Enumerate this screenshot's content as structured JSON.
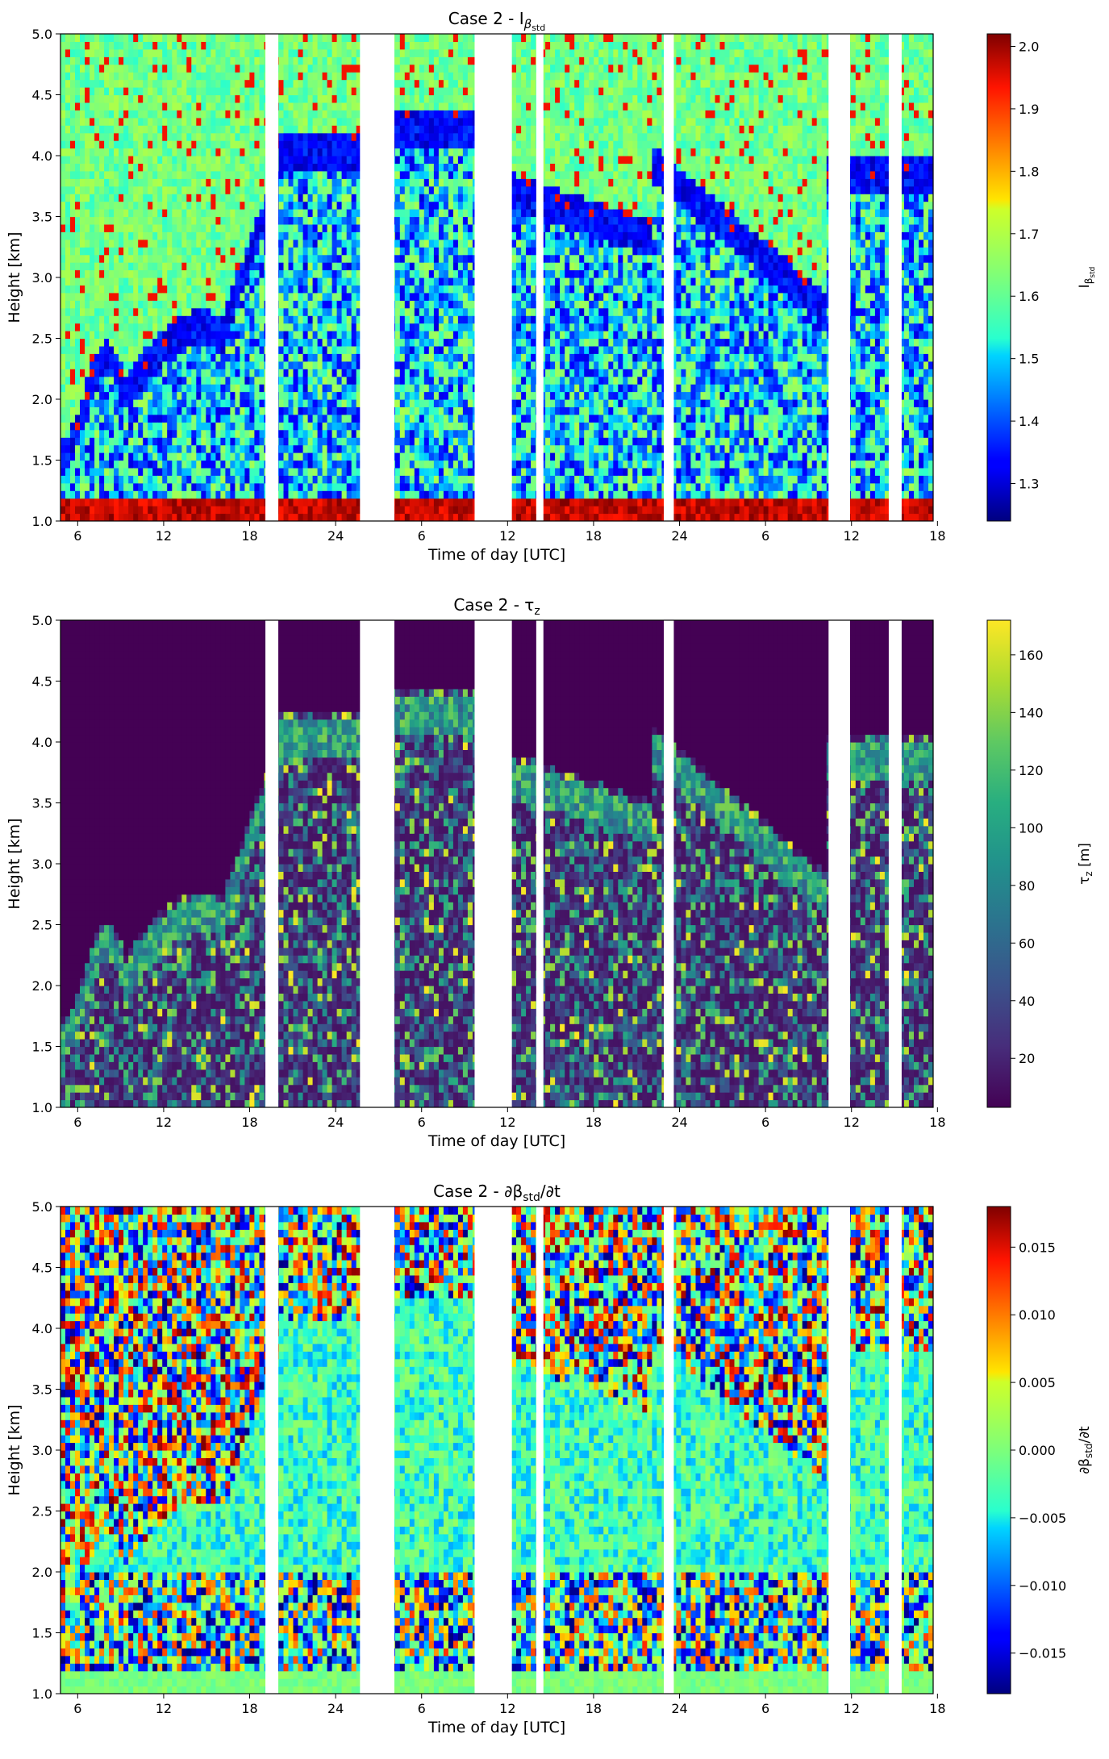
{
  "chart_data": [
    {
      "type": "heatmap",
      "title": "Case 2 - I",
      "title_symbol": "β",
      "title_subscript": "std",
      "xlabel": "Time of day [UTC]",
      "ylabel": "Height [km]",
      "x_ticks": [
        "6",
        "12",
        "18",
        "24",
        "6",
        "12",
        "18",
        "24",
        "6",
        "12",
        "18"
      ],
      "y_ticks": [
        "1.0",
        "1.5",
        "2.0",
        "2.5",
        "3.0",
        "3.5",
        "4.0",
        "4.5",
        "5.0"
      ],
      "ylim": [
        1.0,
        5.0
      ],
      "colormap": "jet",
      "colorbar": {
        "label": "I",
        "label_subscript": "β",
        "label_subsubscript": "std",
        "range": [
          1.24,
          2.02
        ],
        "ticks": [
          "1.3",
          "1.4",
          "1.5",
          "1.6",
          "1.7",
          "1.8",
          "1.9",
          "2.0"
        ],
        "tick_values": [
          1.3,
          1.4,
          1.5,
          1.6,
          1.7,
          1.8,
          1.9,
          2.0
        ]
      },
      "data_gaps_hours": [
        [
          19.1,
          20.0
        ],
        [
          25.7,
          28.1
        ],
        [
          33.7,
          36.3
        ],
        [
          38.0,
          38.5
        ],
        [
          46.9,
          47.6
        ],
        [
          58.4,
          59.9
        ],
        [
          62.6,
          63.5
        ]
      ]
    },
    {
      "type": "heatmap",
      "title": "Case 2 - τ",
      "title_subscript": "z",
      "xlabel": "Time of day [UTC]",
      "ylabel": "Height [km]",
      "x_ticks": [
        "6",
        "12",
        "18",
        "24",
        "6",
        "12",
        "18",
        "24",
        "6",
        "12",
        "18"
      ],
      "y_ticks": [
        "1.0",
        "1.5",
        "2.0",
        "2.5",
        "3.0",
        "3.5",
        "4.0",
        "4.5",
        "5.0"
      ],
      "ylim": [
        1.0,
        5.0
      ],
      "colormap": "viridis",
      "colorbar": {
        "label": "τ",
        "label_subscript": "z",
        "label_unit": " [m]",
        "range": [
          3,
          172
        ],
        "ticks": [
          "20",
          "40",
          "60",
          "80",
          "100",
          "120",
          "140",
          "160"
        ],
        "tick_values": [
          20,
          40,
          60,
          80,
          100,
          120,
          140,
          160
        ]
      },
      "data_gaps_hours": [
        [
          19.1,
          20.0
        ],
        [
          25.7,
          28.1
        ],
        [
          33.7,
          36.3
        ],
        [
          38.0,
          38.5
        ],
        [
          46.9,
          47.6
        ],
        [
          58.4,
          59.9
        ],
        [
          62.6,
          63.5
        ]
      ]
    },
    {
      "type": "heatmap",
      "title": "Case 2 - ∂β",
      "title_subscript": "std",
      "title_suffix": "/∂t",
      "xlabel": "Time of day [UTC]",
      "ylabel": "Height [km]",
      "x_ticks": [
        "6",
        "12",
        "18",
        "24",
        "6",
        "12",
        "18",
        "24",
        "6",
        "12",
        "18"
      ],
      "y_ticks": [
        "1.0",
        "1.5",
        "2.0",
        "2.5",
        "3.0",
        "3.5",
        "4.0",
        "4.5",
        "5.0"
      ],
      "ylim": [
        1.0,
        5.0
      ],
      "colormap": "jet",
      "colorbar": {
        "label": "∂β",
        "label_subscript": "std",
        "label_suffix": "/∂t",
        "range": [
          -0.018,
          0.018
        ],
        "ticks": [
          "−0.015",
          "−0.010",
          "−0.005",
          "0.000",
          "0.005",
          "0.010",
          "0.015"
        ],
        "tick_values": [
          -0.015,
          -0.01,
          -0.005,
          0.0,
          0.005,
          0.01,
          0.015
        ]
      },
      "data_gaps_hours": [
        [
          19.1,
          20.0
        ],
        [
          25.7,
          28.1
        ],
        [
          33.7,
          36.3
        ],
        [
          38.0,
          38.5
        ],
        [
          46.9,
          47.6
        ],
        [
          58.4,
          59.9
        ],
        [
          62.6,
          63.5
        ]
      ]
    }
  ]
}
